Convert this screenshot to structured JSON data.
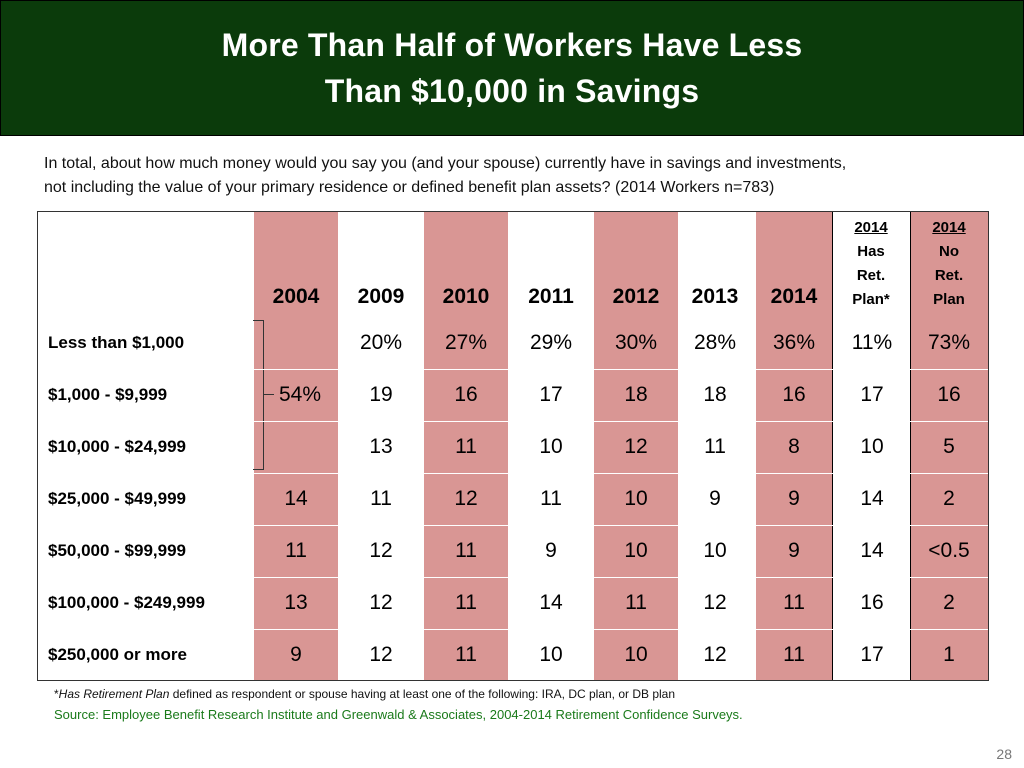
{
  "title": {
    "line1": "More Than Half of Workers Have Less",
    "line2": "Than $10,000 in Savings"
  },
  "question": {
    "line1": "In total, about how much money would you say you (and your spouse) currently have in savings and investments,",
    "line2": "not including the value of your primary residence or defined benefit plan assets? (2014 Workers n=783)"
  },
  "colors": {
    "title_bg": "#0b3b0b",
    "shade": "#d99694",
    "source_text": "#1a7a1a"
  },
  "table": {
    "year_headers": [
      "2004",
      "2009",
      "2010",
      "2011",
      "2012",
      "2013",
      "2014"
    ],
    "has_plan_header": {
      "l1": "2014",
      "l2": "Has",
      "l3": "Ret.",
      "l4": "Plan*"
    },
    "no_plan_header": {
      "l1": "2014",
      "l2": "No",
      "l3": "Ret.",
      "l4": "Plan"
    },
    "combined_2004_under_10k": "54%",
    "rows": [
      {
        "label": "Less than $1,000",
        "values": [
          "",
          "20%",
          "27%",
          "29%",
          "30%",
          "28%",
          "36%",
          "11%",
          "73%"
        ]
      },
      {
        "label": "$1,000 - $9,999",
        "values": [
          "",
          "19",
          "16",
          "17",
          "18",
          "18",
          "16",
          "17",
          "16"
        ]
      },
      {
        "label": "$10,000 - $24,999",
        "values": [
          "",
          "13",
          "11",
          "10",
          "12",
          "11",
          "8",
          "10",
          "5"
        ]
      },
      {
        "label": "$25,000 - $49,999",
        "values": [
          "14",
          "11",
          "12",
          "11",
          "10",
          "9",
          "9",
          "14",
          "2"
        ]
      },
      {
        "label": "$50,000 - $99,999",
        "values": [
          "11",
          "12",
          "11",
          "9",
          "10",
          "10",
          "9",
          "14",
          "<0.5"
        ]
      },
      {
        "label": "$100,000 - $249,999",
        "values": [
          "13",
          "12",
          "11",
          "14",
          "11",
          "12",
          "11",
          "16",
          "2"
        ]
      },
      {
        "label": "$250,000 or more",
        "values": [
          "9",
          "12",
          "11",
          "10",
          "10",
          "12",
          "11",
          "17",
          "1"
        ]
      }
    ]
  },
  "footnote": {
    "mark": "*",
    "italic": "Has Retirement Plan",
    "rest": " defined as respondent or spouse having at least one of the following: IRA, DC plan, or DB plan"
  },
  "source": "Source:  Employee Benefit Research Institute and Greenwald & Associates, 2004-2014 Retirement Confidence Surveys.",
  "page_number": "28"
}
